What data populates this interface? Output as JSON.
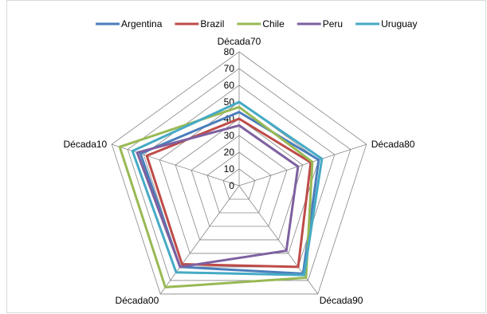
{
  "chart_data": {
    "type": "radar",
    "axes": [
      "Década70",
      "Década80",
      "Década90",
      "Década00",
      "Década10"
    ],
    "rlim": [
      0,
      80
    ],
    "ticks": [
      0,
      10,
      20,
      30,
      40,
      50,
      60,
      70,
      80
    ],
    "legend_position": "top",
    "grid": true,
    "series": [
      {
        "name": "Argentina",
        "color": "#4a7ebb",
        "values": [
          44,
          50,
          65,
          60,
          62
        ]
      },
      {
        "name": "Brazil",
        "color": "#be4b48",
        "values": [
          40,
          45,
          60,
          58,
          58
        ]
      },
      {
        "name": "Chile",
        "color": "#98b954",
        "values": [
          47,
          46,
          68,
          75,
          75
        ]
      },
      {
        "name": "Peru",
        "color": "#7d60a0",
        "values": [
          36,
          37,
          48,
          60,
          64
        ]
      },
      {
        "name": "Uruguay",
        "color": "#46aac5",
        "values": [
          50,
          52,
          66,
          64,
          67
        ]
      }
    ]
  }
}
